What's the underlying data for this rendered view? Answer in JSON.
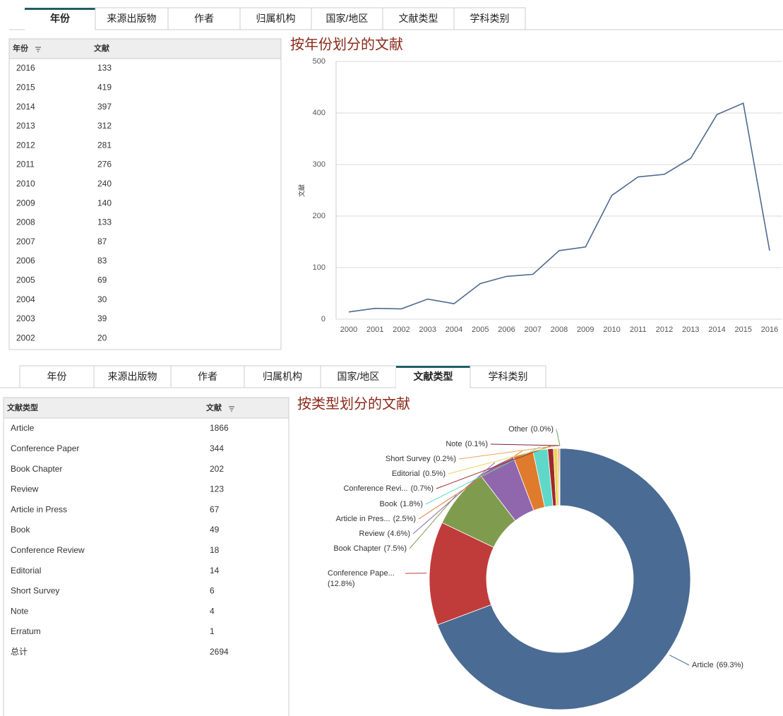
{
  "top": {
    "tabs": [
      "年份",
      "来源出版物",
      "作者",
      "归属机构",
      "国家/地区",
      "文献类型",
      "学科类别"
    ],
    "active_tab": 0,
    "table": {
      "columns": [
        "年份",
        "文献"
      ],
      "rows": [
        [
          "2016",
          133
        ],
        [
          "2015",
          419
        ],
        [
          "2014",
          397
        ],
        [
          "2013",
          312
        ],
        [
          "2012",
          281
        ],
        [
          "2011",
          276
        ],
        [
          "2010",
          240
        ],
        [
          "2009",
          140
        ],
        [
          "2008",
          133
        ],
        [
          "2007",
          87
        ],
        [
          "2006",
          83
        ],
        [
          "2005",
          69
        ],
        [
          "2004",
          30
        ],
        [
          "2003",
          39
        ],
        [
          "2002",
          20
        ]
      ]
    }
  },
  "bottom": {
    "tabs": [
      "年份",
      "来源出版物",
      "作者",
      "归属机构",
      "国家/地区",
      "文献类型",
      "学科类别"
    ],
    "active_tab": 5,
    "table": {
      "columns": [
        "文献类型",
        "文献"
      ],
      "rows": [
        [
          "Article",
          1866
        ],
        [
          "Conference Paper",
          344
        ],
        [
          "Book Chapter",
          202
        ],
        [
          "Review",
          123
        ],
        [
          "Article in Press",
          67
        ],
        [
          "Book",
          49
        ],
        [
          "Conference Review",
          18
        ],
        [
          "Editorial",
          14
        ],
        [
          "Short Survey",
          6
        ],
        [
          "Note",
          4
        ],
        [
          "Erratum",
          1
        ],
        [
          "总计",
          2694
        ]
      ]
    }
  },
  "chart_data": [
    {
      "type": "line",
      "title": "按年份划分的文献",
      "ylabel": "文献",
      "categories": [
        "2000",
        "2001",
        "2002",
        "2003",
        "2004",
        "2005",
        "2006",
        "2007",
        "2008",
        "2009",
        "2010",
        "2011",
        "2012",
        "2013",
        "2014",
        "2015",
        "2016"
      ],
      "values": [
        14,
        21,
        20,
        39,
        30,
        69,
        83,
        87,
        133,
        140,
        240,
        276,
        281,
        312,
        397,
        419,
        133
      ],
      "color": "#4f6a8f",
      "ylim": [
        0,
        500
      ],
      "yticks": [
        0,
        100,
        200,
        300,
        400,
        500
      ],
      "grid": true
    },
    {
      "type": "donut",
      "title": "按类型划分的文献",
      "categories": [
        "Article",
        "Conference Pape...",
        "Book Chapter",
        "Review",
        "Article in Pres...",
        "Book",
        "Conference Revi...",
        "Editorial",
        "Short Survey",
        "Note",
        "Other"
      ],
      "values": [
        69.3,
        12.8,
        7.5,
        4.6,
        2.5,
        1.8,
        0.7,
        0.5,
        0.2,
        0.1,
        0.0
      ],
      "value_labels": [
        "(69.3%)",
        "(12.8%)",
        "(7.5%)",
        "(4.6%)",
        "(2.5%)",
        "(1.8%)",
        "(0.7%)",
        "(0.5%)",
        "(0.2%)",
        "(0.1%)",
        "(0.0%)"
      ],
      "colors": [
        "#4a6b93",
        "#c03c3b",
        "#7f9c4e",
        "#9066ad",
        "#e07a2c",
        "#5fd8c9",
        "#a02828",
        "#e8d55a",
        "#f2a35d",
        "#7d1f3b",
        "#6aaa58"
      ]
    }
  ]
}
